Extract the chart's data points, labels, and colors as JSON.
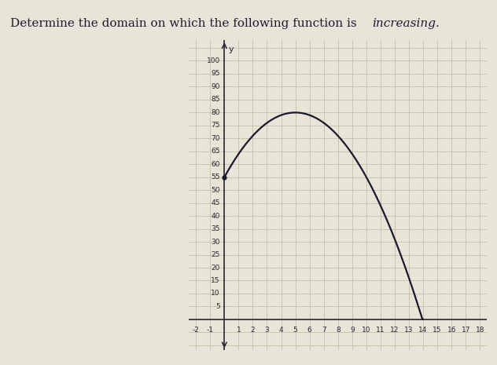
{
  "title_normal": "Determine the domain on which the following function is ",
  "title_italic": "increasing.",
  "bg_color": "#e8e4d8",
  "grid_color": "#c0b89a",
  "axis_color": "#2a2a3a",
  "curve_color": "#1a1a2e",
  "curve_linewidth": 1.6,
  "x_start": 0,
  "x_end": 14,
  "peak_x": 5,
  "peak_y": 80,
  "y_intercept": 55,
  "xlim": [
    -2.5,
    18.5
  ],
  "ylim": [
    -12,
    108
  ],
  "xticks": [
    -2,
    -1,
    1,
    2,
    3,
    4,
    5,
    6,
    7,
    8,
    9,
    10,
    11,
    12,
    13,
    14,
    15,
    16,
    17,
    18
  ],
  "yticks": [
    5,
    10,
    15,
    20,
    25,
    30,
    35,
    40,
    45,
    50,
    55,
    60,
    65,
    70,
    75,
    80,
    85,
    90,
    95,
    100
  ],
  "tick_fontsize": 6.5,
  "title_fontsize": 11
}
